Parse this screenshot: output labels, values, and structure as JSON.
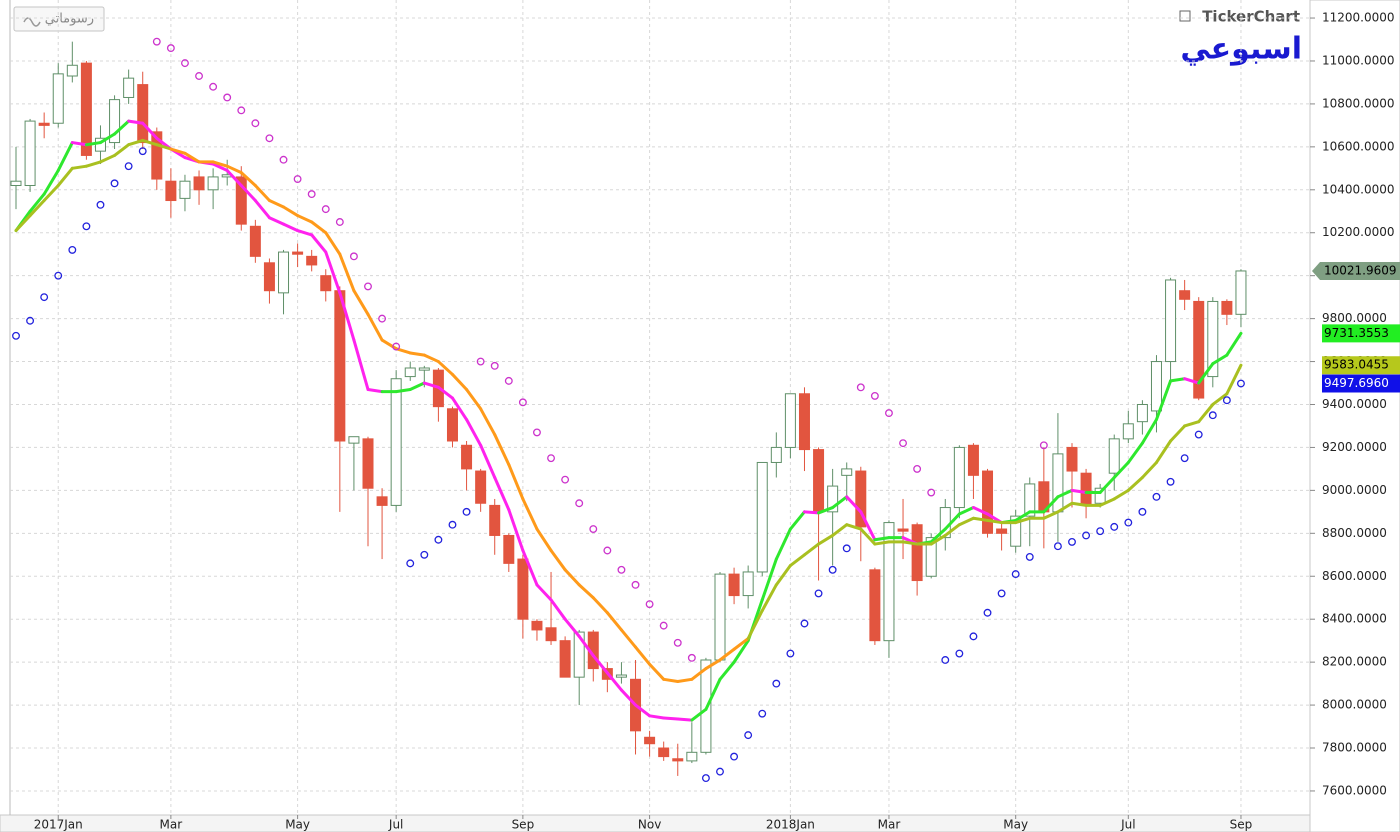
{
  "chart_data": {
    "type": "candlestick",
    "title": "اسبوعي",
    "brand": "TickerChart",
    "button": "رسوماتي",
    "categories": [
      null,
      null,
      null,
      "2017Jan",
      null,
      null,
      null,
      null,
      null,
      null,
      null,
      "Mar",
      null,
      null,
      null,
      null,
      null,
      null,
      null,
      null,
      "May",
      null,
      null,
      null,
      null,
      null,
      null,
      "Jul",
      null,
      null,
      null,
      null,
      null,
      null,
      null,
      null,
      "Sep",
      null,
      null,
      null,
      null,
      null,
      null,
      null,
      null,
      "Nov",
      null,
      null,
      null,
      null,
      null,
      null,
      null,
      null,
      null,
      "2018Jan",
      null,
      null,
      null,
      null,
      null,
      null,
      "Mar",
      null,
      null,
      null,
      null,
      null,
      null,
      null,
      null,
      "May",
      null,
      null,
      null,
      null,
      null,
      null,
      null,
      "Jul",
      null,
      null,
      null,
      null,
      null,
      null,
      null,
      "Sep"
    ],
    "open": [
      10420,
      10420,
      10710,
      10710,
      10930,
      10990,
      10580,
      10620,
      10830,
      10890,
      10670,
      10440,
      10360,
      10460,
      10400,
      10460,
      10460,
      10230,
      10060,
      9920,
      10110,
      10090,
      10000,
      9930,
      9220,
      9240,
      8970,
      8930,
      9530,
      9560,
      9560,
      9380,
      9210,
      9090,
      8930,
      8790,
      8680,
      8390,
      8360,
      8300,
      8130,
      8340,
      8170,
      8130,
      8120,
      7850,
      7800,
      7750,
      7740,
      7780,
      8210,
      8610,
      8510,
      8620,
      9130,
      9200,
      9450,
      9190,
      8900,
      9070,
      9090,
      8630,
      8300,
      8820,
      8840,
      8600,
      8780,
      8920,
      9210,
      9090,
      8820,
      8740,
      8880,
      9040,
      8900,
      9200,
      9080,
      8940,
      9080,
      9240,
      9320,
      9370,
      9600,
      9930,
      9880,
      9530,
      9880,
      9820
    ],
    "high": [
      10600,
      10730,
      10760,
      10990,
      11090,
      11000,
      10700,
      10840,
      10960,
      10950,
      10690,
      10500,
      10470,
      10490,
      10500,
      10540,
      10510,
      10260,
      10080,
      10120,
      10150,
      10120,
      10030,
      9950,
      9250,
      9250,
      9010,
      9560,
      9600,
      9580,
      9570,
      9390,
      9230,
      9100,
      8960,
      8800,
      8700,
      8400,
      8620,
      8320,
      8350,
      8350,
      8200,
      8200,
      8210,
      7880,
      7830,
      7820,
      7920,
      8220,
      8620,
      8640,
      8650,
      9130,
      9270,
      9450,
      9480,
      9200,
      9100,
      9130,
      9110,
      8640,
      8860,
      8960,
      8850,
      8800,
      8960,
      9210,
      9220,
      9100,
      8850,
      8910,
      9060,
      9200,
      9360,
      9220,
      9100,
      9030,
      9260,
      9370,
      9420,
      9630,
      9990,
      9980,
      9900,
      9900,
      9890,
      10030
    ],
    "low": [
      10310,
      10390,
      10640,
      10690,
      10900,
      10540,
      10520,
      10590,
      10800,
      10590,
      10400,
      10270,
      10300,
      10330,
      10310,
      10420,
      10210,
      10060,
      9870,
      9820,
      10040,
      10020,
      9880,
      8900,
      9000,
      8740,
      8680,
      8900,
      9510,
      9480,
      9320,
      9200,
      9000,
      8900,
      8700,
      8620,
      8310,
      8300,
      8280,
      8130,
      8000,
      8110,
      8060,
      8100,
      7770,
      7760,
      7740,
      7670,
      7730,
      7770,
      8200,
      8470,
      8450,
      8600,
      9060,
      9150,
      9090,
      8580,
      8650,
      8950,
      8670,
      8280,
      8220,
      8680,
      8510,
      8590,
      8720,
      8870,
      8960,
      8780,
      8720,
      8710,
      8740,
      8730,
      8760,
      8920,
      8870,
      8920,
      9000,
      9220,
      9260,
      9270,
      9510,
      9840,
      9420,
      9480,
      9770,
      9760
    ],
    "close": [
      10440,
      10720,
      10700,
      10940,
      10980,
      10560,
      10640,
      10820,
      10920,
      10620,
      10450,
      10350,
      10440,
      10400,
      10460,
      10470,
      10240,
      10090,
      9930,
      10110,
      10100,
      10050,
      9930,
      9230,
      9250,
      9010,
      8930,
      9520,
      9570,
      9570,
      9390,
      9230,
      9100,
      8940,
      8790,
      8660,
      8400,
      8350,
      8300,
      8130,
      8340,
      8170,
      8120,
      8140,
      7880,
      7820,
      7760,
      7740,
      7780,
      8210,
      8610,
      8510,
      8620,
      9130,
      9200,
      9450,
      9190,
      8900,
      9020,
      9100,
      8830,
      8300,
      8850,
      8810,
      8580,
      8780,
      8920,
      9200,
      9070,
      8800,
      8800,
      8880,
      9030,
      8900,
      9170,
      9090,
      8930,
      9010,
      9240,
      9310,
      9400,
      9600,
      9980,
      9890,
      9430,
      9880,
      9820,
      10021.9609
    ],
    "up_color": "#ffffff",
    "up_border": "#5f8f68",
    "down_color": "#e2553f",
    "lines": [
      {
        "values": [
          10210,
          10300,
          10380,
          10490,
          10620,
          10610,
          10620,
          10660,
          10720,
          10710,
          10640,
          10590,
          10550,
          10530,
          10520,
          10490,
          10420,
          10350,
          10270,
          10240,
          10210,
          10190,
          10110,
          9920,
          9700,
          9470,
          9460,
          9460,
          9470,
          9500,
          9480,
          9430,
          9330,
          9210,
          9060,
          8910,
          8720,
          8560,
          8490,
          8400,
          8320,
          8230,
          8150,
          8070,
          8000,
          7950,
          7940,
          7935,
          7930,
          7980,
          8120,
          8200,
          8300,
          8490,
          8680,
          8820,
          8900,
          8895,
          8920,
          8970,
          8900,
          8770,
          8780,
          8780,
          8750,
          8760,
          8820,
          8890,
          8920,
          8890,
          8850,
          8860,
          8900,
          8900,
          8970,
          9000,
          8990,
          8990,
          9060,
          9130,
          9220,
          9330,
          9510,
          9520,
          9500,
          9590,
          9630,
          9731.3553
        ],
        "color": "#2ee82e",
        "down_color": "#ff22ee"
      },
      {
        "values": [
          10210,
          10280,
          10350,
          10420,
          10500,
          10510,
          10530,
          10560,
          10610,
          10630,
          10610,
          10590,
          10570,
          10530,
          10530,
          10510,
          10480,
          10420,
          10350,
          10320,
          10280,
          10250,
          10200,
          10100,
          9930,
          9820,
          9700,
          9660,
          9640,
          9630,
          9600,
          9540,
          9470,
          9380,
          9260,
          9120,
          8960,
          8820,
          8720,
          8630,
          8560,
          8500,
          8430,
          8350,
          8270,
          8190,
          8120,
          8110,
          8120,
          8170,
          8210,
          8260,
          8310,
          8440,
          8560,
          8650,
          8700,
          8750,
          8790,
          8840,
          8820,
          8750,
          8760,
          8760,
          8750,
          8750,
          8790,
          8840,
          8870,
          8860,
          8850,
          8850,
          8870,
          8870,
          8900,
          8940,
          8930,
          8930,
          8960,
          9000,
          9060,
          9130,
          9230,
          9300,
          9320,
          9400,
          9450,
          9583.0455
        ],
        "color": "#a9c020",
        "above_color": "#ff9a1a"
      }
    ],
    "sar": {
      "values": [
        9720,
        9790,
        9900,
        10000,
        10120,
        10230,
        10330,
        10430,
        10510,
        10580,
        11090,
        11060,
        10990,
        10930,
        10880,
        10830,
        10770,
        10710,
        10640,
        10540,
        10450,
        10380,
        10310,
        10250,
        10090,
        9950,
        9800,
        9670,
        8660,
        8700,
        8770,
        8840,
        8900,
        9600,
        9580,
        9510,
        9410,
        9270,
        9150,
        9050,
        8940,
        8820,
        8720,
        8630,
        8560,
        8470,
        8370,
        8290,
        8220,
        7660,
        7690,
        7760,
        7860,
        7960,
        8100,
        8240,
        8380,
        8520,
        8630,
        8730,
        9480,
        9440,
        9360,
        9220,
        9100,
        8990,
        8210,
        8240,
        8320,
        8430,
        8520,
        8610,
        8690,
        9210,
        8740,
        8760,
        8790,
        8810,
        8830,
        8850,
        8900,
        8970,
        9040,
        9150,
        9260,
        9350,
        9420,
        9497.696
      ],
      "up_color": "#2222dd",
      "down_color": "#cc33cc"
    },
    "price_tags": [
      {
        "value": 10021.9609,
        "label": "10021.9609",
        "color": "#7f9f82",
        "text_color": "#000000"
      },
      {
        "value": 9731.3553,
        "label": "9731.3553",
        "color": "#22ee22",
        "text_color": "#000000"
      },
      {
        "value": 9583.0455,
        "label": "9583.0455",
        "color": "#b6c81c",
        "text_color": "#000000"
      },
      {
        "value": 9497.696,
        "label": "9497.6960",
        "color": "#1010e8",
        "text_color": "#ffffff"
      }
    ],
    "ylim": [
      7488,
      11284
    ],
    "yticks": [
      {
        "value": 7600,
        "label": "7600.0000"
      },
      {
        "value": 7800,
        "label": "7800.0000"
      },
      {
        "value": 8000,
        "label": "8000.0000"
      },
      {
        "value": 8200,
        "label": "8200.0000"
      },
      {
        "value": 8400,
        "label": "8400.0000"
      },
      {
        "value": 8600,
        "label": "8600.0000"
      },
      {
        "value": 8800,
        "label": "8800.0000"
      },
      {
        "value": 9000,
        "label": "9000.0000"
      },
      {
        "value": 9200,
        "label": "9200.0000"
      },
      {
        "value": 9400,
        "label": "9400.0000"
      },
      {
        "value": 9600,
        "label": "9600.0000"
      },
      {
        "value": 9800,
        "label": "9800.0000"
      },
      {
        "value": 10000,
        "label": "10000.0000"
      },
      {
        "value": 10200,
        "label": "10200.0000"
      },
      {
        "value": 10400,
        "label": "10400.0000"
      },
      {
        "value": 10600,
        "label": "10600.0000"
      },
      {
        "value": 10800,
        "label": "10800.0000"
      },
      {
        "value": 11000,
        "label": "11000.0000"
      },
      {
        "value": 11200,
        "label": "11200.0000"
      }
    ],
    "grid": true
  }
}
